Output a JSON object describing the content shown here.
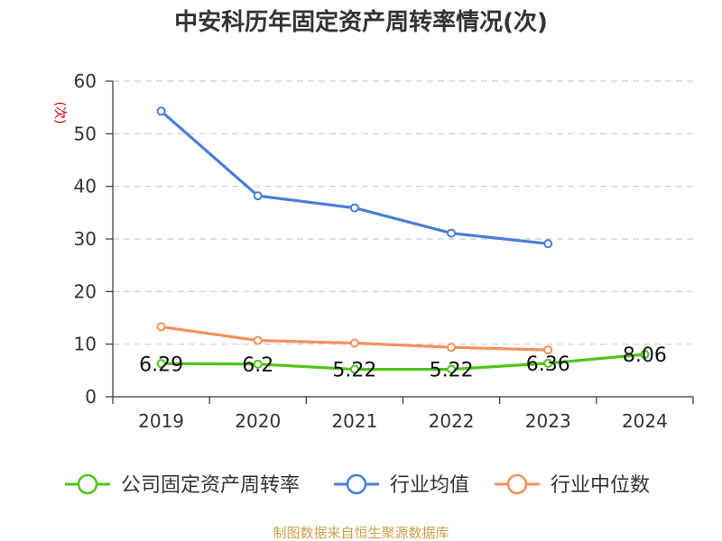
{
  "chart_data": {
    "type": "line",
    "title": "中安科历年固定资产周转率情况(次)",
    "ylabel": "(次)",
    "ylim": [
      0,
      60
    ],
    "yticks": [
      0,
      10,
      20,
      30,
      40,
      50,
      60
    ],
    "grid": true,
    "legend_position": "bottom",
    "categories": [
      "2019",
      "2020",
      "2021",
      "2022",
      "2023",
      "2024"
    ],
    "series": [
      {
        "name": "公司固定资产周转率",
        "color": "#52c41a",
        "values": [
          6.29,
          6.2,
          5.22,
          5.22,
          6.36,
          8.06
        ],
        "labels": [
          "6.29",
          "6.2",
          "5.22",
          "5.22",
          "6.36",
          "8.06"
        ]
      },
      {
        "name": "行业均值",
        "color": "#4a7fd6",
        "values": [
          54.3,
          38.2,
          35.9,
          31.1,
          29.1,
          null
        ]
      },
      {
        "name": "行业中位数",
        "color": "#f5905c",
        "values": [
          13.3,
          10.7,
          10.2,
          9.4,
          8.9,
          null
        ]
      }
    ],
    "source": "制图数据来自恒生聚源数据库",
    "source_color": "#c8a04a",
    "ylabel_color": "#cc0000"
  }
}
